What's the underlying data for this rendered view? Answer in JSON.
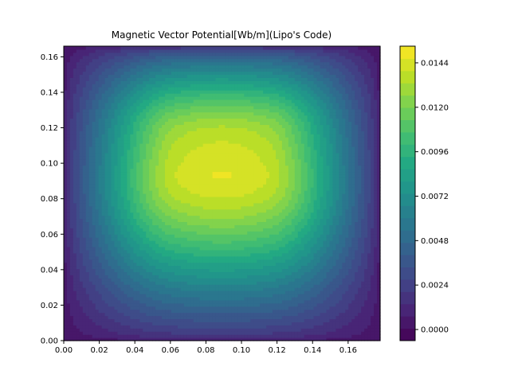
{
  "chart_data": {
    "type": "heatmap",
    "subtype": "filled-contour",
    "title": "Magnetic Vector Potential[Wb/m](Lipo's Code)",
    "xlabel": "",
    "ylabel": "",
    "xlim": [
      0,
      0.178
    ],
    "ylim": [
      0,
      0.166
    ],
    "x_ticks": [
      "0.00",
      "0.02",
      "0.04",
      "0.06",
      "0.08",
      "0.10",
      "0.12",
      "0.14",
      "0.16"
    ],
    "y_ticks": [
      "0.00",
      "0.02",
      "0.04",
      "0.06",
      "0.08",
      "0.10",
      "0.12",
      "0.14",
      "0.16"
    ],
    "colormap": "viridis",
    "colorbar": {
      "range": [
        -0.0006,
        0.0153
      ],
      "levels": 24,
      "tick_values": [
        0.0,
        0.0024,
        0.0048,
        0.0072,
        0.0096,
        0.012,
        0.0144
      ],
      "tick_labels": [
        "0.0000",
        "0.0024",
        "0.0048",
        "0.0072",
        "0.0096",
        "0.0120",
        "0.0144"
      ]
    },
    "field": {
      "description_units": "Wb/m",
      "background": 0.0,
      "peak": 0.015,
      "core_region_x": [
        0.062,
        0.116
      ],
      "core_region_y": [
        0.095,
        0.118
      ],
      "core_value": 0.0148
    },
    "grid": false
  }
}
